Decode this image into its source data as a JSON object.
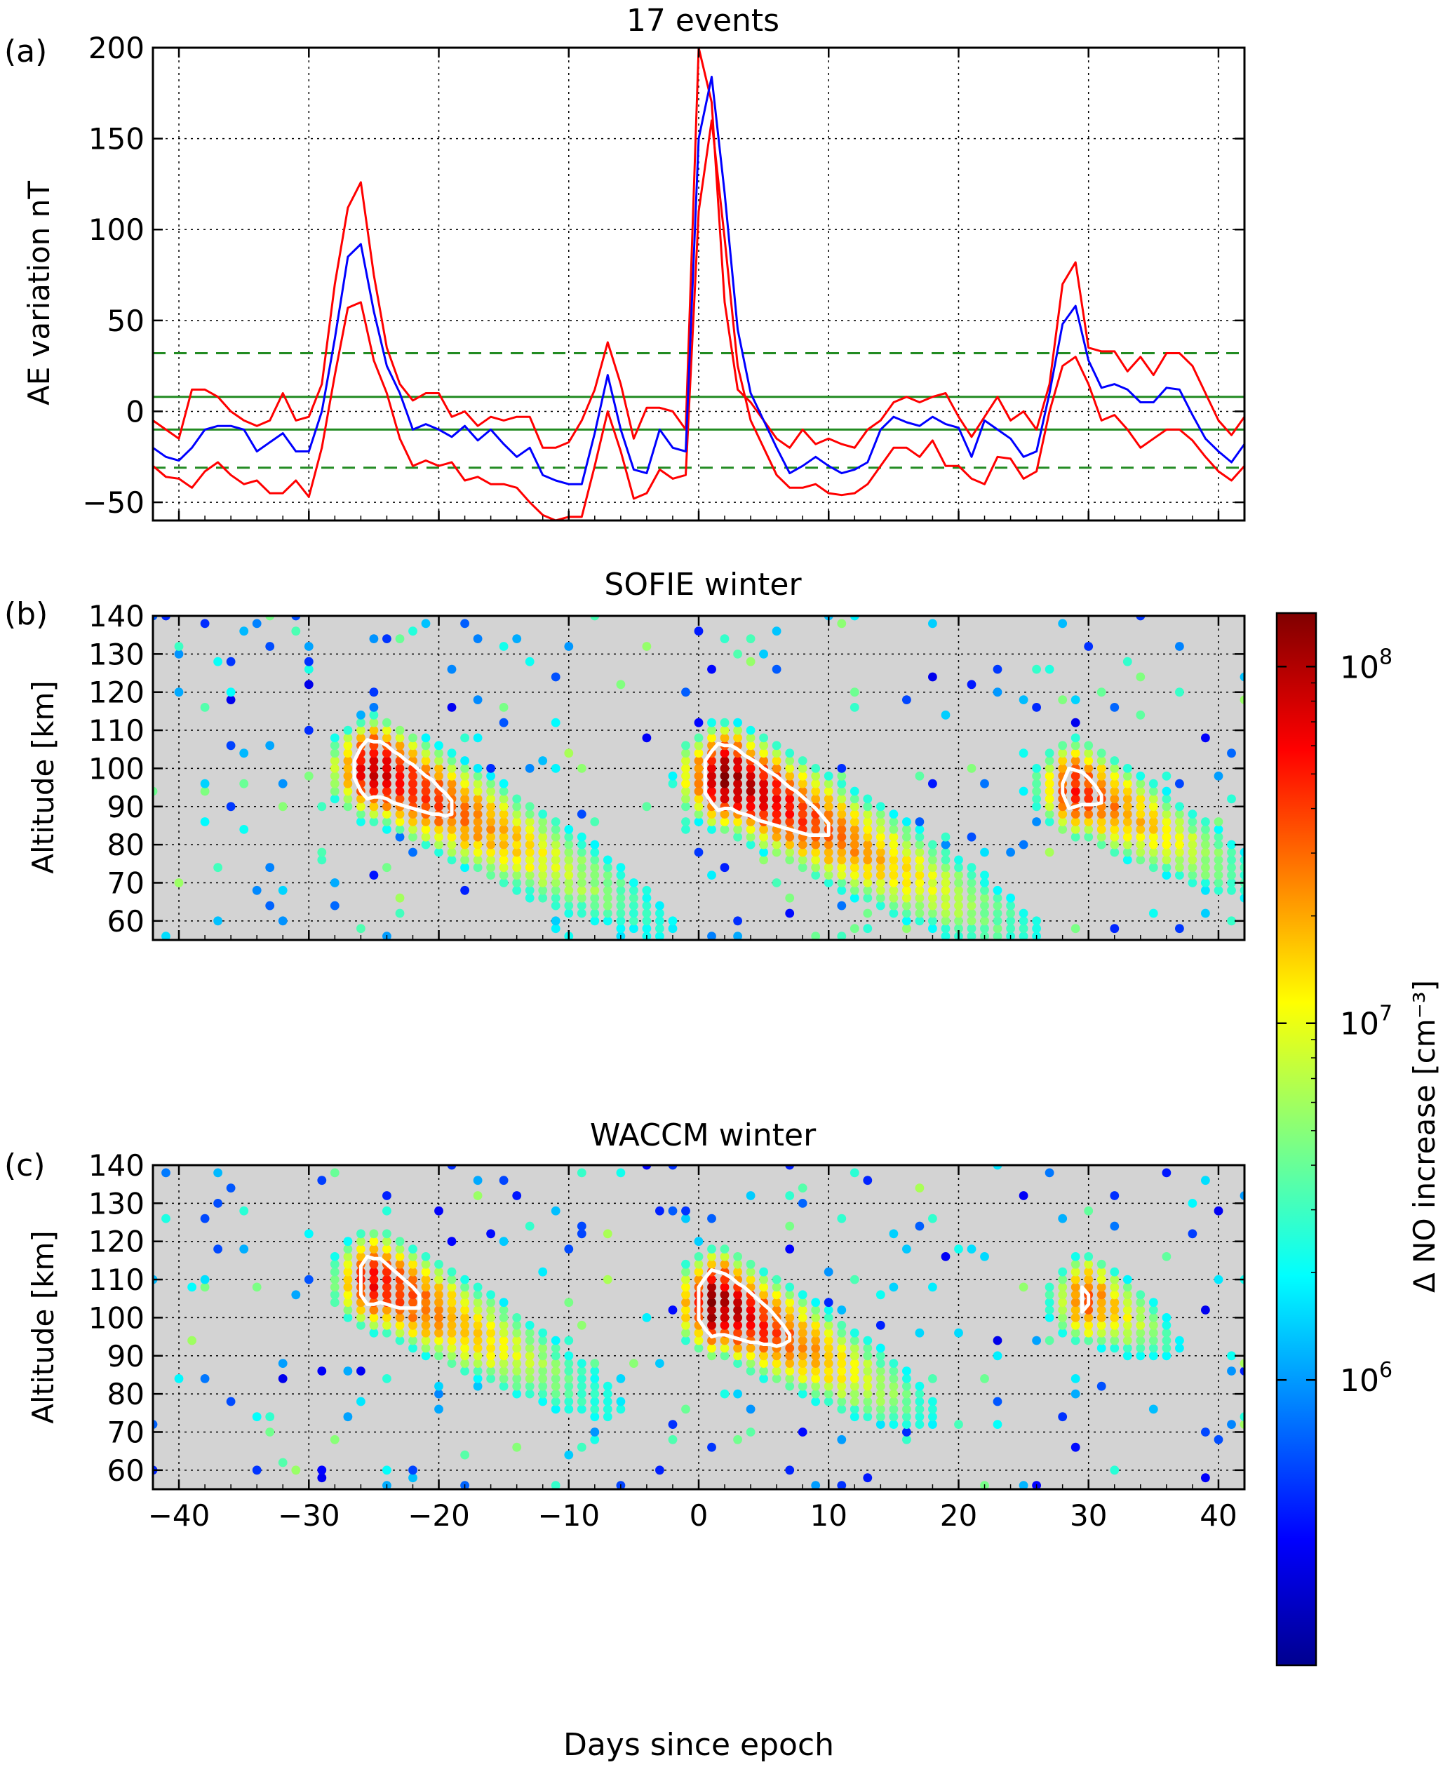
{
  "chart_data": [
    {
      "panel": "(a)",
      "type": "line",
      "title": "17 events",
      "xlabel": "",
      "ylabel": "AE variation nT",
      "xlim": [
        -42,
        42
      ],
      "ylim": [
        -60,
        200
      ],
      "xticks": [
        -40,
        -30,
        -20,
        -10,
        0,
        10,
        20,
        30,
        40
      ],
      "yticks": [
        -50,
        0,
        50,
        100,
        150,
        200
      ],
      "tick_labels_x_shown": false,
      "grid": true,
      "x": [
        -42,
        -41,
        -40,
        -39,
        -38,
        -37,
        -36,
        -35,
        -34,
        -33,
        -32,
        -31,
        -30,
        -29,
        -28,
        -27,
        -26,
        -25,
        -24,
        -23,
        -22,
        -21,
        -20,
        -19,
        -18,
        -17,
        -16,
        -15,
        -14,
        -13,
        -12,
        -11,
        -10,
        -9,
        -8,
        -7,
        -6,
        -5,
        -4,
        -3,
        -2,
        -1,
        0,
        1,
        2,
        3,
        4,
        5,
        6,
        7,
        8,
        9,
        10,
        11,
        12,
        13,
        14,
        15,
        16,
        17,
        18,
        19,
        20,
        21,
        22,
        23,
        24,
        25,
        26,
        27,
        28,
        29,
        30,
        31,
        32,
        33,
        34,
        35,
        36,
        37,
        38,
        39,
        40,
        41,
        42
      ],
      "series": [
        {
          "role": "mean",
          "color": "#0000ff",
          "style": "solid",
          "values": [
            -20,
            -25,
            -27,
            -20,
            -10,
            -8,
            -8,
            -10,
            -22,
            -17,
            -12,
            -22,
            -22,
            0,
            40,
            85,
            92,
            55,
            25,
            10,
            -10,
            -7,
            -10,
            -14,
            -8,
            -16,
            -10,
            -18,
            -25,
            -20,
            -35,
            -38,
            -40,
            -40,
            -12,
            20,
            -10,
            -32,
            -34,
            -10,
            -20,
            -22,
            150,
            184,
            120,
            45,
            10,
            -5,
            -20,
            -34,
            -30,
            -25,
            -30,
            -34,
            -32,
            -28,
            -10,
            -3,
            -6,
            -8,
            -3,
            -7,
            -9,
            -25,
            -5,
            -10,
            -15,
            -25,
            -22,
            10,
            48,
            58,
            28,
            13,
            15,
            12,
            5,
            5,
            13,
            12,
            -2,
            -15,
            -22,
            -28,
            -18
          ]
        },
        {
          "role": "upper-bound",
          "color": "#ff0000",
          "style": "solid",
          "values": [
            -5,
            -10,
            -15,
            12,
            12,
            8,
            0,
            -5,
            -8,
            -5,
            10,
            -5,
            -3,
            15,
            70,
            112,
            126,
            75,
            35,
            15,
            6,
            10,
            10,
            -3,
            0,
            -8,
            -3,
            -5,
            -3,
            -3,
            -20,
            -20,
            -17,
            -5,
            12,
            38,
            15,
            -15,
            2,
            2,
            0,
            -10,
            200,
            170,
            60,
            12,
            5,
            -5,
            -15,
            -20,
            -10,
            -18,
            -15,
            -18,
            -20,
            -10,
            -5,
            5,
            8,
            5,
            8,
            10,
            -3,
            -14,
            -3,
            8,
            -5,
            0,
            -10,
            15,
            70,
            82,
            35,
            33,
            33,
            22,
            30,
            20,
            32,
            32,
            25,
            10,
            -5,
            -13,
            -3
          ]
        },
        {
          "role": "lower-bound",
          "color": "#ff0000",
          "style": "solid",
          "values": [
            -30,
            -36,
            -37,
            -42,
            -33,
            -28,
            -35,
            -40,
            -38,
            -45,
            -45,
            -38,
            -47,
            -20,
            20,
            57,
            60,
            28,
            10,
            -15,
            -30,
            -27,
            -30,
            -28,
            -38,
            -36,
            -40,
            -40,
            -42,
            -50,
            -57,
            -60,
            -58,
            -58,
            -30,
            0,
            -22,
            -48,
            -45,
            -32,
            -37,
            -35,
            110,
            160,
            95,
            25,
            -5,
            -20,
            -35,
            -42,
            -42,
            -40,
            -45,
            -46,
            -45,
            -40,
            -30,
            -20,
            -20,
            -25,
            -16,
            -30,
            -30,
            -37,
            -40,
            -25,
            -26,
            -37,
            -33,
            0,
            25,
            30,
            15,
            -5,
            -2,
            -10,
            -20,
            -15,
            -10,
            -10,
            -16,
            -25,
            -33,
            -38,
            -30
          ]
        },
        {
          "role": "upper-inner",
          "color": "#228b22",
          "style": "solid",
          "values": [
            8,
            8,
            8,
            8,
            8,
            8,
            8,
            8,
            8,
            8,
            8,
            8,
            8,
            8,
            8,
            8,
            8,
            8,
            8,
            8,
            8,
            8,
            8,
            8,
            8,
            8,
            8,
            8,
            8,
            8,
            8,
            8,
            8,
            8,
            8,
            8,
            8,
            8,
            8,
            8,
            8,
            8,
            8,
            8,
            8,
            8,
            8,
            8,
            8,
            8,
            8,
            8,
            8,
            8,
            8,
            8,
            8,
            8,
            8,
            8,
            8,
            8,
            8,
            8,
            8,
            8,
            8,
            8,
            8,
            8,
            8,
            8,
            8,
            8,
            8,
            8,
            8,
            8,
            8,
            8,
            8,
            8,
            8,
            8,
            8
          ]
        },
        {
          "role": "lower-inner",
          "color": "#228b22",
          "style": "solid",
          "values": [
            -10,
            -10,
            -10,
            -10,
            -10,
            -10,
            -10,
            -10,
            -10,
            -10,
            -10,
            -10,
            -10,
            -10,
            -10,
            -10,
            -10,
            -10,
            -10,
            -10,
            -10,
            -10,
            -10,
            -10,
            -10,
            -10,
            -10,
            -10,
            -10,
            -10,
            -10,
            -10,
            -10,
            -10,
            -10,
            -10,
            -10,
            -10,
            -10,
            -10,
            -10,
            -10,
            -10,
            -10,
            -10,
            -10,
            -10,
            -10,
            -10,
            -10,
            -10,
            -10,
            -10,
            -10,
            -10,
            -10,
            -10,
            -10,
            -10,
            -10,
            -10,
            -10,
            -10,
            -10,
            -10,
            -10,
            -10,
            -10,
            -10,
            -10,
            -10,
            -10,
            -10,
            -10,
            -10,
            -10,
            -10,
            -10,
            -10,
            -10,
            -10,
            -10,
            -10,
            -10,
            -10
          ]
        },
        {
          "role": "upper-outer",
          "color": "#228b22",
          "style": "dashed",
          "values": [
            32,
            32,
            32,
            32,
            32,
            32,
            32,
            32,
            32,
            32,
            32,
            32,
            32,
            32,
            32,
            32,
            32,
            32,
            32,
            32,
            32,
            32,
            32,
            32,
            32,
            32,
            32,
            32,
            32,
            32,
            32,
            32,
            32,
            32,
            32,
            32,
            32,
            32,
            32,
            32,
            32,
            32,
            32,
            32,
            32,
            32,
            32,
            32,
            32,
            32,
            32,
            32,
            32,
            32,
            32,
            32,
            32,
            32,
            32,
            32,
            32,
            32,
            32,
            32,
            32,
            32,
            32,
            32,
            32,
            32,
            32,
            32,
            32,
            32,
            32,
            32,
            32,
            32,
            32,
            32,
            32,
            32,
            32,
            32,
            32
          ]
        },
        {
          "role": "lower-outer",
          "color": "#228b22",
          "style": "dashed",
          "values": [
            -31,
            -31,
            -31,
            -31,
            -31,
            -31,
            -31,
            -31,
            -31,
            -31,
            -31,
            -31,
            -31,
            -31,
            -31,
            -31,
            -31,
            -31,
            -31,
            -31,
            -31,
            -31,
            -31,
            -31,
            -31,
            -31,
            -31,
            -31,
            -31,
            -31,
            -31,
            -31,
            -31,
            -31,
            -31,
            -31,
            -31,
            -31,
            -31,
            -31,
            -31,
            -31,
            -31,
            -31,
            -31,
            -31,
            -31,
            -31,
            -31,
            -31,
            -31,
            -31,
            -31,
            -31,
            -31,
            -31,
            -31,
            -31,
            -31,
            -31,
            -31,
            -31,
            -31,
            -31,
            -31,
            -31,
            -31,
            -31,
            -31,
            -31,
            -31,
            -31,
            -31,
            -31,
            -31,
            -31,
            -31,
            -31,
            -31,
            -31,
            -31,
            -31,
            -31,
            -31,
            -31
          ]
        }
      ]
    },
    {
      "panel": "(b)",
      "type": "heatmap",
      "title": "SOFIE winter",
      "xlabel": "",
      "ylabel": "Altitude [km]",
      "xlim": [
        -42,
        42
      ],
      "ylim": [
        55,
        140
      ],
      "xticks": [
        -40,
        -30,
        -20,
        -10,
        0,
        10,
        20,
        30,
        40
      ],
      "yticks": [
        60,
        70,
        80,
        90,
        100,
        110,
        120,
        130,
        140
      ],
      "tick_labels_x_shown": false,
      "background_color": "#d3d3d3",
      "grid": true,
      "value_units": "log10 of Δ NO increase [cm^-3]",
      "events": [
        {
          "t0": -25.5,
          "peak_alt": 100,
          "peak_log": 8.0,
          "duration_days": 24
        },
        {
          "t0": 1.5,
          "peak_alt": 98,
          "peak_log": 8.12,
          "duration_days": 26
        },
        {
          "t0": 28.5,
          "peak_alt": 95,
          "peak_log": 7.75,
          "duration_days": 16
        }
      ],
      "contour_level_log": 7.5,
      "contour_color": "#ffffff"
    },
    {
      "panel": "(c)",
      "type": "heatmap",
      "title": "WACCM winter",
      "xlabel": "Days since epoch",
      "ylabel": "Altitude [km]",
      "xlim": [
        -42,
        42
      ],
      "ylim": [
        55,
        140
      ],
      "xticks": [
        -40,
        -30,
        -20,
        -10,
        0,
        10,
        20,
        30,
        40
      ],
      "yticks": [
        60,
        70,
        80,
        90,
        100,
        110,
        120,
        130,
        140
      ],
      "tick_labels_x_shown": true,
      "background_color": "#d3d3d3",
      "grid": true,
      "value_units": "log10 of Δ NO increase [cm^-3]",
      "events": [
        {
          "t0": -25.5,
          "peak_alt": 110,
          "peak_log": 7.85,
          "duration_days": 20
        },
        {
          "t0": 1.0,
          "peak_alt": 104,
          "peak_log": 8.12,
          "duration_days": 18
        },
        {
          "t0": 29.5,
          "peak_alt": 105,
          "peak_log": 7.6,
          "duration_days": 8
        }
      ],
      "contour_level_log": 7.5,
      "contour_color": "#ffffff"
    }
  ],
  "colorbar": {
    "label": "Δ NO increase [cm⁻³]",
    "colormap": "jet",
    "log_range": [
      5.2,
      8.15
    ],
    "ticks": [
      {
        "log": 6,
        "base": "10",
        "exp": "6"
      },
      {
        "log": 7,
        "base": "10",
        "exp": "7"
      },
      {
        "log": 8,
        "base": "10",
        "exp": "8"
      }
    ]
  }
}
